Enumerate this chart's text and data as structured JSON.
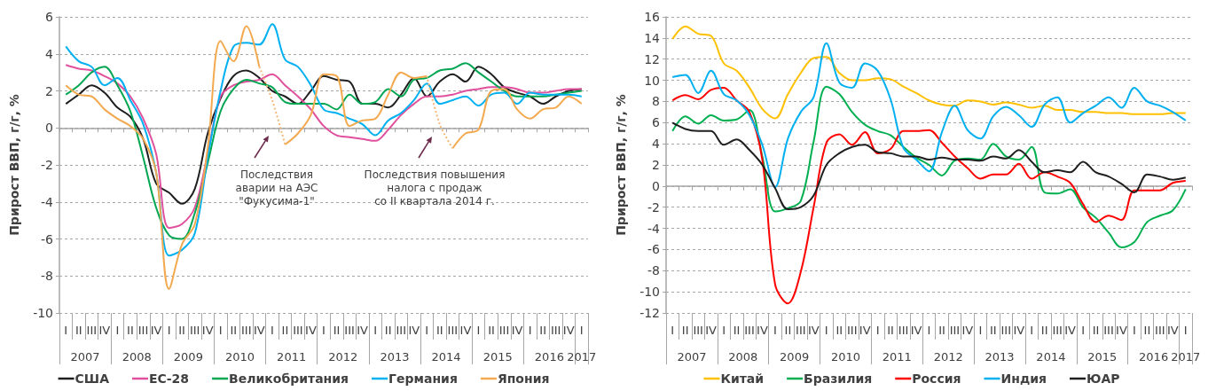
{
  "chart_data": [
    {
      "type": "line",
      "ylabel": "Прирост ВВП, г/г, %",
      "ylim": [
        -10,
        6
      ],
      "yticks": [
        -10,
        -8,
        -6,
        -4,
        -2,
        0,
        2,
        4,
        6
      ],
      "grid": "y",
      "legend": "bottom",
      "marker": "none",
      "categories": [
        "I",
        "II",
        "III",
        "IV",
        "I",
        "II",
        "III",
        "IV",
        "I",
        "II",
        "III",
        "IV",
        "I",
        "II",
        "III",
        "IV",
        "I",
        "II",
        "III",
        "IV",
        "I",
        "II",
        "III",
        "IV",
        "I",
        "II",
        "III",
        "IV",
        "I",
        "II",
        "III",
        "IV",
        "I",
        "II",
        "III",
        "IV",
        "I",
        "II",
        "III",
        "IV",
        "I"
      ],
      "x2lim": [
        2007,
        2017.25
      ],
      "x2ticks": [
        {
          "value": 2007,
          "label": null
        },
        {
          "value": 2007.5,
          "label": "2007"
        },
        {
          "value": 2008,
          "label": null
        },
        {
          "value": 2008.5,
          "label": "2008"
        },
        {
          "value": 2009,
          "label": null
        },
        {
          "value": 2009.5,
          "label": "2009"
        },
        {
          "value": 2010,
          "label": null
        },
        {
          "value": 2010.5,
          "label": "2010"
        },
        {
          "value": 2011,
          "label": null
        },
        {
          "value": 2011.5,
          "label": "2011"
        },
        {
          "value": 2012,
          "label": null
        },
        {
          "value": 2012.5,
          "label": "2012"
        },
        {
          "value": 2013,
          "label": null
        },
        {
          "value": 2013.5,
          "label": "2013"
        },
        {
          "value": 2014,
          "label": null
        },
        {
          "value": 2014.5,
          "label": "2014"
        },
        {
          "value": 2015,
          "label": null
        },
        {
          "value": 2015.5,
          "label": "2015"
        },
        {
          "value": 2016,
          "label": null
        },
        {
          "value": 2016.5,
          "label": "2016"
        },
        {
          "value": 2017,
          "label": null
        },
        {
          "value": 2017.125,
          "label": "2017"
        },
        {
          "value": 2017.25,
          "label": null
        }
      ],
      "series": [
        {
          "name": "США",
          "color": "#1f1f1f",
          "values": [
            1.3,
            1.8,
            2.3,
            1.9,
            1.1,
            0.6,
            -0.6,
            -3.0,
            -3.5,
            -4.1,
            -3.3,
            -0.3,
            1.6,
            2.8,
            3.1,
            2.7,
            2.0,
            1.7,
            1.3,
            2.0,
            2.8,
            2.6,
            2.5,
            1.3,
            1.3,
            1.1,
            1.8,
            2.7,
            1.7,
            2.5,
            2.9,
            2.5,
            3.3,
            2.9,
            2.2,
            1.9,
            1.7,
            1.3,
            1.7,
            2.0,
            2.1
          ]
        },
        {
          "name": "ЕС-28",
          "color": "#e0509c",
          "values": [
            3.4,
            3.2,
            3.1,
            2.8,
            2.4,
            1.7,
            0.5,
            -1.4,
            -5.4,
            -5.2,
            -4.3,
            -1.4,
            1.7,
            2.3,
            2.5,
            2.6,
            2.9,
            2.3,
            1.7,
            1.0,
            0.1,
            -0.4,
            -0.5,
            -0.6,
            -0.7,
            -0.1,
            0.7,
            1.3,
            1.7,
            1.7,
            1.8,
            2.0,
            2.1,
            2.2,
            2.2,
            2.1,
            1.9,
            1.9,
            2.0,
            2.1,
            2.1
          ]
        },
        {
          "name": "Великобритания",
          "color": "#00a651",
          "values": [
            1.8,
            2.3,
            3.0,
            3.3,
            2.3,
            0.9,
            -1.6,
            -4.3,
            -5.8,
            -6.0,
            -4.6,
            -1.9,
            0.9,
            2.1,
            2.6,
            2.4,
            2.2,
            1.4,
            1.3,
            1.3,
            1.3,
            1.0,
            1.8,
            1.3,
            1.4,
            2.1,
            1.7,
            2.6,
            2.7,
            3.1,
            3.2,
            3.5,
            3.0,
            2.5,
            2.0,
            1.7,
            1.7,
            1.7,
            1.8,
            1.9,
            2.0
          ]
        },
        {
          "name": "Германия",
          "color": "#00b0f0",
          "values": [
            4.4,
            3.6,
            3.3,
            2.3,
            2.7,
            1.5,
            0.2,
            -2.4,
            -6.9,
            -6.6,
            -5.7,
            -1.6,
            2.0,
            4.4,
            4.6,
            4.5,
            5.6,
            3.7,
            3.3,
            2.3,
            1.0,
            0.8,
            0.5,
            0.2,
            -0.4,
            0.4,
            0.8,
            1.5,
            2.4,
            1.3,
            1.5,
            1.7,
            1.2,
            1.8,
            1.9,
            1.3,
            1.9,
            1.8,
            1.8,
            1.8,
            1.7
          ]
        },
        {
          "name": "Япония",
          "color": "#f2a950",
          "values": [
            2.3,
            1.8,
            1.7,
            1.0,
            0.5,
            0.1,
            -0.6,
            -2.4,
            -8.7,
            -6.3,
            -5.2,
            -1.1,
            4.7,
            3.6,
            5.5,
            3.3,
            null,
            -0.9,
            -0.3,
            0.7,
            2.9,
            2.8,
            0.1,
            0.4,
            0.5,
            1.8,
            3.0,
            2.7,
            2.8,
            null,
            -1.1,
            -0.3,
            -0.1,
            2.0,
            2.1,
            1.0,
            0.5,
            1.0,
            1.1,
            1.7,
            1.3
          ]
        },
        {
          "color": "#f6b877",
          "line_style": "dotted",
          "values": [
            null,
            null,
            null,
            null,
            null,
            null,
            null,
            null,
            null,
            null,
            null,
            null,
            null,
            null,
            null,
            3.3,
            1.5,
            -0.9,
            null,
            null,
            null,
            null,
            null,
            null,
            null,
            null,
            null,
            null,
            2.8,
            0.2,
            -1.1,
            null,
            null,
            null,
            null,
            null,
            null,
            null,
            null,
            null,
            null
          ]
        }
      ],
      "annotations": [
        "Последствия\nаварии на АЭС\n\"Фукусима-1\"",
        "Последствия повышения\nналога с продаж\nсо II квартала 2014 г."
      ]
    },
    {
      "type": "line",
      "ylabel": "Прирост ВВП, г/г, %",
      "ylim": [
        -12,
        16
      ],
      "yticks": [
        -12,
        -10,
        -8,
        -6,
        -4,
        -2,
        0,
        2,
        4,
        6,
        8,
        10,
        12,
        14,
        16
      ],
      "grid": "y",
      "legend": "bottom",
      "marker": "none",
      "categories": [
        "I",
        "II",
        "III",
        "IV",
        "I",
        "II",
        "III",
        "IV",
        "I",
        "II",
        "III",
        "IV",
        "I",
        "II",
        "III",
        "IV",
        "I",
        "II",
        "III",
        "IV",
        "I",
        "II",
        "III",
        "IV",
        "I",
        "II",
        "III",
        "IV",
        "I",
        "II",
        "III",
        "IV",
        "I",
        "II",
        "III",
        "IV",
        "I",
        "II",
        "III",
        "IV",
        "I"
      ],
      "x2lim": [
        2007,
        2017.25
      ],
      "x2ticks": [
        {
          "value": 2007,
          "label": null
        },
        {
          "value": 2007.5,
          "label": "2007"
        },
        {
          "value": 2008,
          "label": null
        },
        {
          "value": 2008.5,
          "label": "2008"
        },
        {
          "value": 2009,
          "label": null
        },
        {
          "value": 2009.5,
          "label": "2009"
        },
        {
          "value": 2010,
          "label": null
        },
        {
          "value": 2010.5,
          "label": "2010"
        },
        {
          "value": 2011,
          "label": null
        },
        {
          "value": 2011.5,
          "label": "2011"
        },
        {
          "value": 2012,
          "label": null
        },
        {
          "value": 2012.5,
          "label": "2012"
        },
        {
          "value": 2013,
          "label": null
        },
        {
          "value": 2013.5,
          "label": "2013"
        },
        {
          "value": 2014,
          "label": null
        },
        {
          "value": 2014.5,
          "label": "2014"
        },
        {
          "value": 2015,
          "label": null
        },
        {
          "value": 2015.5,
          "label": "2015"
        },
        {
          "value": 2016,
          "label": null
        },
        {
          "value": 2016.5,
          "label": "2016"
        },
        {
          "value": 2017,
          "label": null
        },
        {
          "value": 2017.125,
          "label": "2017"
        },
        {
          "value": 2017.25,
          "label": null
        }
      ],
      "series": [
        {
          "name": "Китай",
          "color": "#ffc000",
          "values": [
            13.9,
            15.1,
            14.4,
            14.2,
            11.6,
            10.9,
            9.3,
            7.3,
            6.4,
            8.7,
            10.7,
            12.1,
            12.2,
            10.7,
            10.0,
            10.0,
            10.2,
            10.1,
            9.4,
            8.8,
            8.1,
            7.7,
            7.6,
            8.1,
            8.0,
            7.7,
            7.9,
            7.7,
            7.4,
            7.6,
            7.2,
            7.2,
            7.0,
            7.0,
            6.9,
            6.9,
            6.8,
            6.8,
            6.8,
            6.9,
            6.9
          ]
        },
        {
          "name": "Бразилия",
          "color": "#00b050",
          "values": [
            5.2,
            6.6,
            5.9,
            6.7,
            6.2,
            6.3,
            7.2,
            2.8,
            -2.4,
            -2.1,
            -1.4,
            4.2,
            9.4,
            8.7,
            7.0,
            5.8,
            5.2,
            4.8,
            3.7,
            2.7,
            2.0,
            1.0,
            2.4,
            2.6,
            2.5,
            4.0,
            2.8,
            2.5,
            3.7,
            -0.6,
            -0.7,
            -0.3,
            -2.0,
            -3.0,
            -4.4,
            -5.8,
            -5.3,
            -3.4,
            -2.8,
            -2.3,
            -0.3
          ]
        },
        {
          "name": "Россия",
          "color": "#ff0000",
          "values": [
            8.1,
            8.6,
            8.2,
            9.1,
            9.3,
            8.1,
            7.0,
            2.5,
            -9.3,
            -11.1,
            -8.1,
            -2.0,
            4.1,
            4.9,
            3.9,
            5.1,
            3.1,
            3.5,
            5.2,
            5.2,
            5.3,
            4.1,
            2.8,
            1.7,
            0.7,
            1.1,
            1.1,
            2.1,
            0.7,
            1.3,
            0.9,
            0.3,
            -1.7,
            -3.4,
            -2.8,
            -3.2,
            -0.4,
            -0.4,
            -0.4,
            0.3,
            0.5
          ]
        },
        {
          "name": "Индия",
          "color": "#00b0f0",
          "values": [
            10.3,
            10.5,
            8.8,
            10.9,
            8.7,
            8.1,
            6.7,
            3.9,
            -0.1,
            4.5,
            7.0,
            8.4,
            13.5,
            9.8,
            9.3,
            11.6,
            10.9,
            8.2,
            3.6,
            2.5,
            1.4,
            5.1,
            7.6,
            5.3,
            4.5,
            6.6,
            7.5,
            6.7,
            5.6,
            7.7,
            8.4,
            6.0,
            6.9,
            7.6,
            8.4,
            7.4,
            9.3,
            8.0,
            7.6,
            7.0,
            6.2
          ]
        },
        {
          "name": "ЮАР",
          "color": "#1f1f1f",
          "values": [
            6.0,
            5.4,
            5.2,
            5.2,
            3.9,
            4.4,
            3.4,
            2.0,
            -0.2,
            -2.2,
            -2.0,
            -0.9,
            2.0,
            3.1,
            3.7,
            3.9,
            3.2,
            3.1,
            2.8,
            2.8,
            2.5,
            2.7,
            2.5,
            2.5,
            2.4,
            2.8,
            2.6,
            3.4,
            2.3,
            1.3,
            1.5,
            1.3,
            2.3,
            1.3,
            0.9,
            0.2,
            -0.6,
            1.1,
            0.9,
            0.6,
            0.8
          ]
        }
      ]
    }
  ]
}
